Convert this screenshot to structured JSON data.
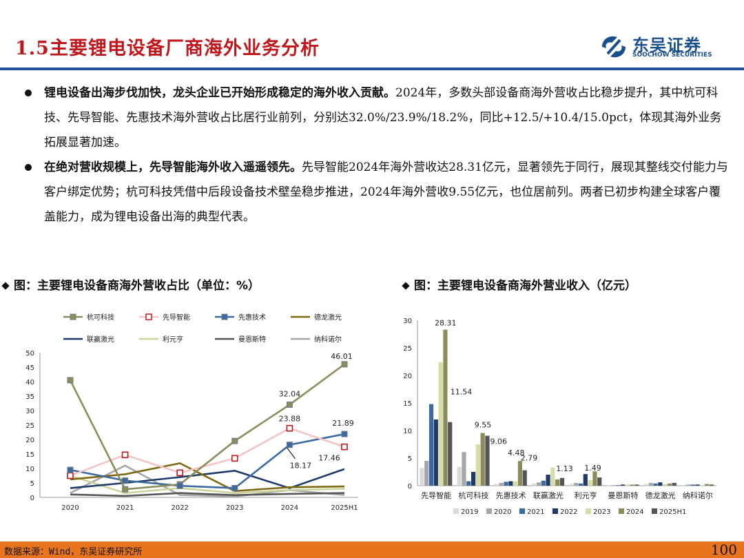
{
  "header": {
    "title": "1.5主要锂电设备厂商海外业务分析",
    "logo_cn": "东吴证券",
    "logo_en": "SOOCHOW SECURITIES"
  },
  "bullets": [
    {
      "bold": "锂电设备出海步伐加快，龙头企业已开始形成稳定的海外收入贡献。",
      "text": "2024年，多数头部设备商海外营收占比稳步提升，其中杭可科技、先导智能、先惠技术海外营收占比居行业前列，分别达32.0%/23.9%/18.2%，同比+12.5/+10.4/15.0pct，体现其海外业务拓展显著加速。"
    },
    {
      "bold": "在绝对营收规模上，先导智能海外收入遥遥领先。",
      "text": "先导智能2024年海外营收达28.31亿元，显著领先于同行，展现其整线交付能力与客户绑定优势；杭可科技凭借中后段设备技术壁垒稳步推进，2024年海外营收9.55亿元，也位居前列。两者已初步构建全球客户覆盖能力，成为锂电设备出海的典型代表。"
    }
  ],
  "chart_titles": {
    "left": "图：主要锂电设备商海外营收占比（单位：%）",
    "right": "图：主要锂电设备商海外营业收入（亿元）"
  },
  "colors": {
    "title_red": "#c0171c",
    "rule_blue": "#1f5296",
    "footer_orange": "#e8741e"
  },
  "chart_data": [
    {
      "type": "line",
      "x": [
        "2020",
        "2021",
        "2022",
        "2023",
        "2024",
        "2025H1"
      ],
      "ylim": [
        0,
        50
      ],
      "yticks": [
        0,
        5,
        10,
        15,
        20,
        25,
        30,
        35,
        40,
        45,
        50
      ],
      "legend_position": "top",
      "series": [
        {
          "name": "杭可科技",
          "color": "#8c8c5a",
          "marker": "square-filled",
          "values": [
            40.5,
            2.8,
            4.5,
            19.5,
            32.04,
            46.01
          ]
        },
        {
          "name": "先导智能",
          "color": "#f2c4c4",
          "marker": "square-open-red",
          "values": [
            7.5,
            14.7,
            8.5,
            13.5,
            23.88,
            17.46
          ]
        },
        {
          "name": "先惠技术",
          "color": "#3d6a9e",
          "marker": "square-filled",
          "values": [
            9.5,
            5.8,
            4.0,
            3.2,
            18.17,
            21.89
          ]
        },
        {
          "name": "德龙激光",
          "color": "#7b6a12",
          "marker": "none",
          "values": [
            6.2,
            8.0,
            11.8,
            2.2,
            3.5,
            3.8
          ]
        },
        {
          "name": "联赢激光",
          "color": "#1f3a68",
          "marker": "none",
          "values": [
            3.2,
            5.0,
            7.0,
            9.2,
            3.2,
            9.8
          ]
        },
        {
          "name": "利元亨",
          "color": "#c8d49a",
          "marker": "none",
          "values": [
            7.5,
            1.5,
            3.2,
            1.5,
            2.5,
            3.0
          ]
        },
        {
          "name": "曼恩斯特",
          "color": "#555555",
          "marker": "none",
          "values": [
            1.0,
            0.5,
            1.5,
            0.8,
            1.2,
            1.5
          ]
        },
        {
          "name": "纳科诺尔",
          "color": "#a6a6a6",
          "marker": "none",
          "values": [
            1.5,
            11.0,
            0.8,
            0.3,
            2.5,
            0.8
          ]
        }
      ],
      "data_labels": [
        {
          "series": "杭可科技",
          "x": "2024",
          "text": "32.04"
        },
        {
          "series": "杭可科技",
          "x": "2025H1",
          "text": "46.01"
        },
        {
          "series": "先导智能",
          "x": "2024",
          "text": "23.88"
        },
        {
          "series": "先导智能",
          "x": "2025H1",
          "text": "17.46"
        },
        {
          "series": "先惠技术",
          "x": "2024",
          "text": "18.17"
        },
        {
          "series": "先惠技术",
          "x": "2025H1",
          "text": "21.89"
        }
      ]
    },
    {
      "type": "bar",
      "categories": [
        "先导智能",
        "杭可科技",
        "先惠技术",
        "联赢激光",
        "利元亨",
        "曼恩斯特",
        "德龙激光",
        "纳科诺尔"
      ],
      "ylim": [
        0,
        30
      ],
      "yticks": [
        0,
        5,
        10,
        15,
        20,
        25,
        30
      ],
      "legend_position": "bottom",
      "series": [
        {
          "name": "2019",
          "color": "#d9d9d9",
          "values": [
            3.2,
            3.4,
            0.3,
            0.4,
            0.3,
            0.1,
            0.3,
            0.1
          ]
        },
        {
          "name": "2020",
          "color": "#a6a6a6",
          "values": [
            4.5,
            6.1,
            0.5,
            0.6,
            0.5,
            0.1,
            0.5,
            0.2
          ]
        },
        {
          "name": "2021",
          "color": "#3d6a9e",
          "values": [
            14.8,
            0.8,
            0.7,
            0.9,
            0.4,
            0.1,
            0.4,
            0.2
          ]
        },
        {
          "name": "2022",
          "color": "#1f3a68",
          "values": [
            12.0,
            2.5,
            0.8,
            2.0,
            2.1,
            0.2,
            0.6,
            0.2
          ]
        },
        {
          "name": "2023",
          "color": "#d4dca8",
          "values": [
            22.4,
            7.5,
            0.8,
            3.3,
            1.0,
            0.2,
            0.3,
            0.1
          ]
        },
        {
          "name": "2024",
          "color": "#8c8c5a",
          "values": [
            28.31,
            9.55,
            4.48,
            1.13,
            2.6,
            0.2,
            0.4,
            0.3
          ]
        },
        {
          "name": "2025H1",
          "color": "#555555",
          "values": [
            11.54,
            9.06,
            2.79,
            1.4,
            1.49,
            0.2,
            0.5,
            0.2
          ]
        }
      ],
      "data_labels": [
        {
          "category": "先导智能",
          "series": "2024",
          "text": "28.31"
        },
        {
          "category": "先导智能",
          "series": "2025H1",
          "text": "11.54"
        },
        {
          "category": "杭可科技",
          "series": "2024",
          "text": "9.55"
        },
        {
          "category": "杭可科技",
          "series": "2025H1",
          "text": "9.06"
        },
        {
          "category": "先惠技术",
          "series": "2024",
          "text": "4.48"
        },
        {
          "category": "先惠技术",
          "series": "2025H1",
          "text": "2.79"
        },
        {
          "category": "联赢激光",
          "series": "2024",
          "text": "1.13"
        },
        {
          "category": "利元亨",
          "series": "2025H1",
          "text": "1.49"
        }
      ]
    }
  ],
  "footer": {
    "source": "数据来源：Wind，东吴证券研究所",
    "page": "100"
  }
}
